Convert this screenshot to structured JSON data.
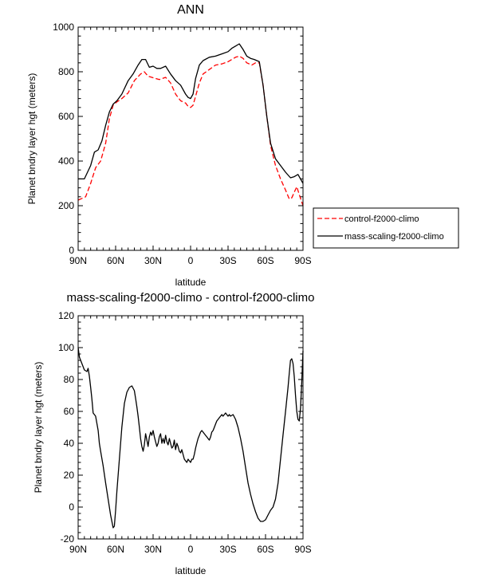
{
  "chart_data": [
    {
      "type": "line",
      "title": "ANN",
      "xlabel": "latitude",
      "ylabel": "Planet bndry layer hgt (meters)",
      "xlim": [
        90,
        -90
      ],
      "ylim": [
        0,
        1000
      ],
      "x_ticks": [
        90,
        60,
        30,
        0,
        -30,
        -60,
        -90
      ],
      "x_tick_labels": [
        "90N",
        "60N",
        "30N",
        "0",
        "30S",
        "60S",
        "90S"
      ],
      "y_ticks": [
        0,
        200,
        400,
        600,
        800,
        1000
      ],
      "y_tick_labels": [
        "0",
        "200",
        "400",
        "600",
        "800",
        "1000"
      ],
      "legend": {
        "placement": "right",
        "entries": [
          {
            "label": "control-f2000-climo",
            "color": "#ff0000",
            "dash": "dashed"
          },
          {
            "label": "mass-scaling-f2000-climo",
            "color": "#000000",
            "dash": "solid"
          }
        ]
      },
      "series": [
        {
          "name": "control-f2000-climo",
          "color": "#ff0000",
          "dash": "dashed",
          "x": [
            90,
            84,
            80,
            76,
            72,
            68,
            65,
            62,
            59,
            55,
            50,
            45,
            40,
            37,
            34,
            31,
            28,
            25,
            20,
            16,
            12,
            8,
            4,
            2,
            0,
            -2,
            -4,
            -7,
            -10,
            -15,
            -20,
            -25,
            -30,
            -33,
            -36,
            -39,
            -42,
            -45,
            -49,
            -52,
            -55,
            -58,
            -61,
            -64,
            -68,
            -72,
            -76,
            -79,
            -81,
            -83,
            -85,
            -87,
            -90
          ],
          "y": [
            225,
            240,
            300,
            370,
            400,
            480,
            590,
            650,
            665,
            680,
            705,
            760,
            790,
            800,
            780,
            775,
            770,
            765,
            775,
            750,
            700,
            670,
            660,
            645,
            640,
            650,
            690,
            750,
            790,
            810,
            830,
            835,
            845,
            855,
            865,
            870,
            860,
            840,
            830,
            840,
            840,
            740,
            600,
            470,
            380,
            320,
            270,
            230,
            235,
            260,
            285,
            250,
            200
          ]
        },
        {
          "name": "mass-scaling-f2000-climo",
          "color": "#000000",
          "dash": "solid",
          "x": [
            90,
            85,
            80,
            77,
            74,
            71,
            68,
            65,
            62,
            59,
            55,
            50,
            46,
            42,
            39,
            36,
            33,
            30,
            27,
            24,
            20,
            16,
            12,
            8,
            4,
            2,
            0,
            -2,
            -4,
            -7,
            -10,
            -15,
            -20,
            -25,
            -30,
            -33,
            -36,
            -39,
            -42,
            -45,
            -48,
            -51,
            -55,
            -58,
            -61,
            -64,
            -68,
            -72,
            -76,
            -80,
            -83,
            -86,
            -90
          ],
          "y": [
            320,
            320,
            380,
            440,
            450,
            490,
            560,
            620,
            655,
            670,
            700,
            760,
            790,
            830,
            855,
            855,
            820,
            825,
            815,
            815,
            825,
            790,
            760,
            740,
            700,
            685,
            680,
            700,
            770,
            830,
            850,
            865,
            870,
            880,
            890,
            905,
            915,
            925,
            900,
            870,
            860,
            855,
            845,
            740,
            600,
            480,
            410,
            380,
            350,
            325,
            330,
            340,
            300
          ]
        }
      ]
    },
    {
      "type": "line",
      "title": "mass-scaling-f2000-climo - control-f2000-climo",
      "xlabel": "latitude",
      "ylabel": "Planet bndry layer hgt (meters)",
      "xlim": [
        90,
        -90
      ],
      "ylim": [
        -20,
        120
      ],
      "x_ticks": [
        90,
        60,
        30,
        0,
        -30,
        -60,
        -90
      ],
      "x_tick_labels": [
        "90N",
        "60N",
        "30N",
        "0",
        "30S",
        "60S",
        "90S"
      ],
      "y_ticks": [
        -20,
        0,
        20,
        40,
        60,
        80,
        100,
        120
      ],
      "y_tick_labels": [
        "-20",
        "0",
        "20",
        "40",
        "60",
        "80",
        "100",
        "120"
      ],
      "series": [
        {
          "name": "mass-scaling-f2000-climo - control-f2000-climo",
          "color": "#000000",
          "dash": "solid",
          "x": [
            90,
            89,
            87,
            85,
            83,
            82,
            81,
            80,
            79,
            78,
            76,
            74,
            73,
            72,
            70,
            68,
            66,
            64,
            62,
            61,
            60,
            59,
            57,
            55,
            53,
            51,
            49,
            47,
            45,
            44,
            43,
            42,
            41,
            40,
            39,
            38,
            37,
            36,
            35,
            34,
            33,
            32,
            31,
            30,
            29,
            28,
            27,
            26,
            25,
            24,
            23,
            22,
            21,
            20,
            19,
            18,
            17,
            16,
            15,
            14,
            13,
            12,
            11,
            10,
            9,
            8,
            7,
            6,
            5,
            4,
            3,
            2,
            1,
            0,
            -1,
            -2,
            -3,
            -4,
            -5,
            -6,
            -7,
            -8,
            -9,
            -10,
            -11,
            -12,
            -13,
            -14,
            -15,
            -16,
            -17,
            -18,
            -19,
            -20,
            -21,
            -22,
            -23,
            -24,
            -25,
            -26,
            -27,
            -28,
            -29,
            -30,
            -31,
            -32,
            -34,
            -36,
            -38,
            -40,
            -42,
            -44,
            -46,
            -48,
            -50,
            -52,
            -54,
            -56,
            -58,
            -60,
            -62,
            -64,
            -66,
            -68,
            -70,
            -72,
            -74,
            -76,
            -78,
            -79,
            -80,
            -81,
            -82,
            -83,
            -84,
            -85,
            -86,
            -87,
            -88,
            -89,
            -90
          ],
          "y": [
            100,
            94,
            90,
            86,
            85,
            87,
            82,
            75,
            68,
            59,
            57,
            48,
            40,
            35,
            26,
            15,
            5,
            -5,
            -13,
            -12,
            -2,
            10,
            30,
            50,
            65,
            72,
            75,
            76,
            73,
            68,
            63,
            57,
            50,
            43,
            38,
            35,
            39,
            46,
            42,
            38,
            44,
            47,
            45,
            48,
            44,
            41,
            38,
            40,
            44,
            46,
            40,
            43,
            40,
            45,
            41,
            39,
            43,
            40,
            37,
            38,
            42,
            36,
            40,
            38,
            35,
            34,
            36,
            33,
            30,
            29,
            28,
            30,
            29,
            28,
            30,
            30,
            33,
            37,
            40,
            43,
            45,
            47,
            48,
            47,
            46,
            45,
            44,
            43,
            42,
            44,
            47,
            48,
            50,
            52,
            54,
            55,
            56,
            57,
            58,
            57,
            58,
            59,
            58,
            57,
            58,
            57,
            58,
            55,
            50,
            43,
            35,
            25,
            15,
            8,
            2,
            -3,
            -7,
            -9,
            -9,
            -8,
            -5,
            -2,
            0,
            5,
            15,
            30,
            45,
            60,
            75,
            84,
            92,
            93,
            90,
            82,
            70,
            60,
            55,
            54,
            62,
            78,
            98
          ]
        }
      ]
    }
  ]
}
